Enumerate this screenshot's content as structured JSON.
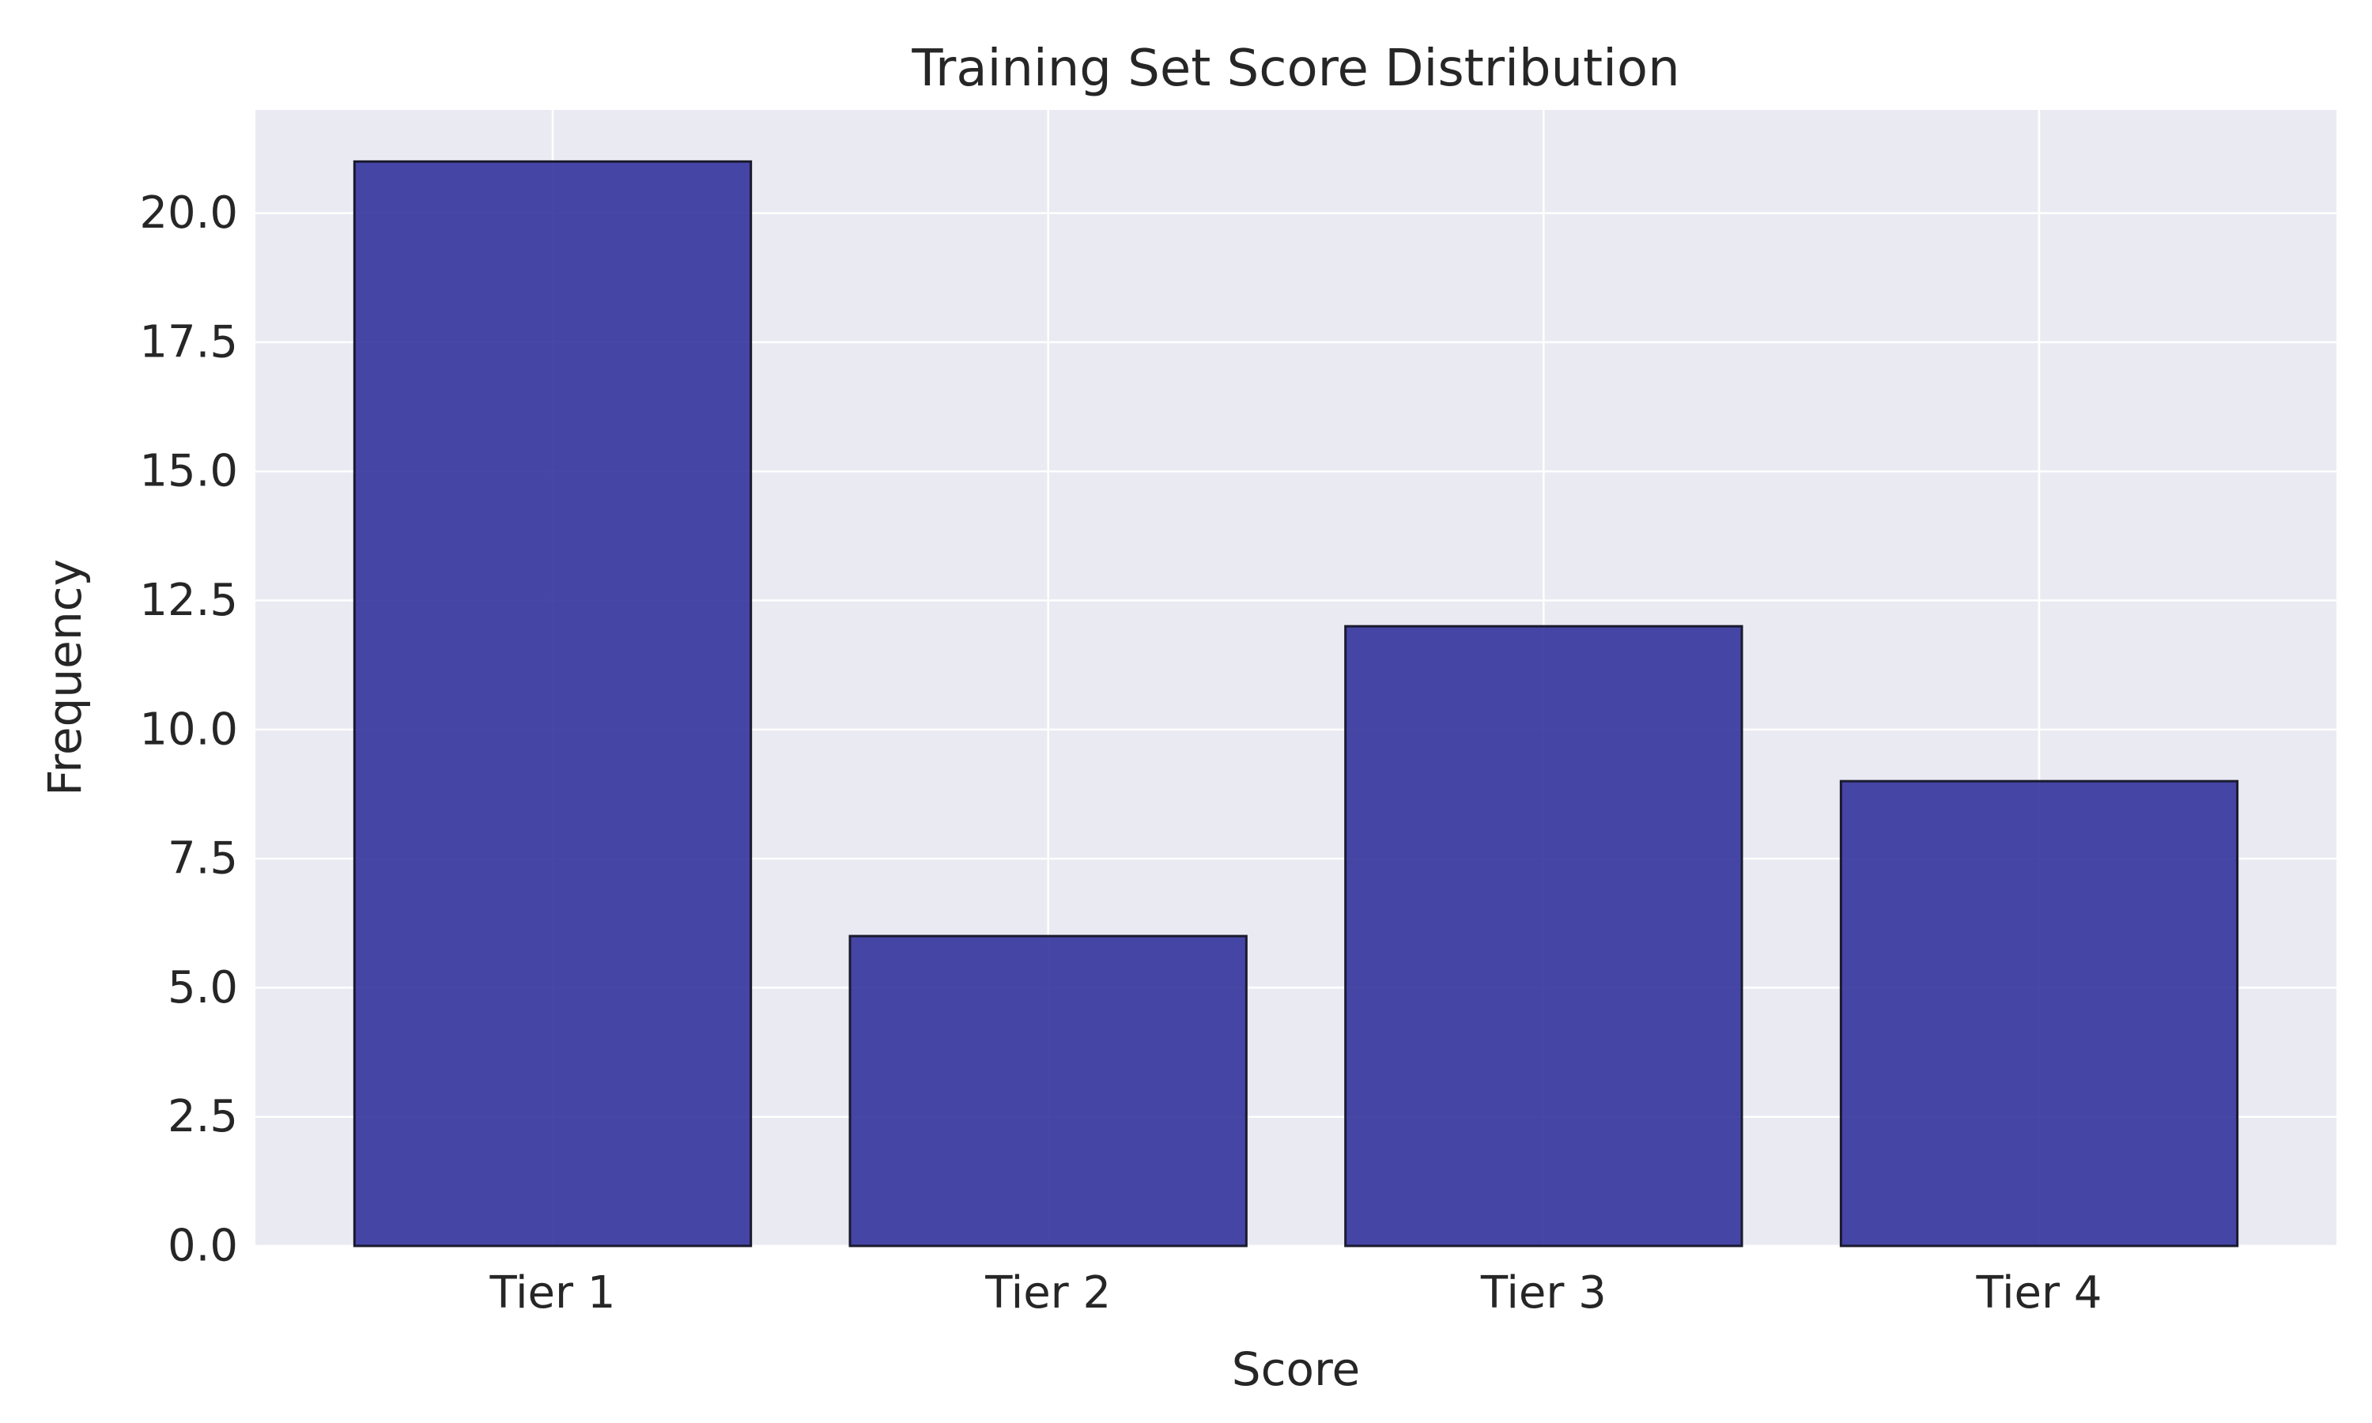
{
  "chart_data": {
    "type": "bar",
    "title": "Training Set Score Distribution",
    "xlabel": "Score",
    "ylabel": "Frequency",
    "categories": [
      "Tier 1",
      "Tier 2",
      "Tier 3",
      "Tier 4"
    ],
    "values": [
      21,
      6,
      12,
      9
    ],
    "ylim": [
      0,
      22
    ],
    "yticks": [
      0,
      2.5,
      5,
      7.5,
      10,
      12.5,
      15,
      17.5,
      20
    ],
    "ytick_labels": [
      "0.0",
      "2.5",
      "5.0",
      "7.5",
      "10.0",
      "12.5",
      "15.0",
      "17.5",
      "20.0"
    ],
    "grid": true,
    "colors": {
      "bar": "#2e2e9a",
      "bar_edge": "#1a1a2e",
      "plot_background": "#eaeaf2",
      "grid": "#ffffff",
      "text": "#262626"
    }
  }
}
